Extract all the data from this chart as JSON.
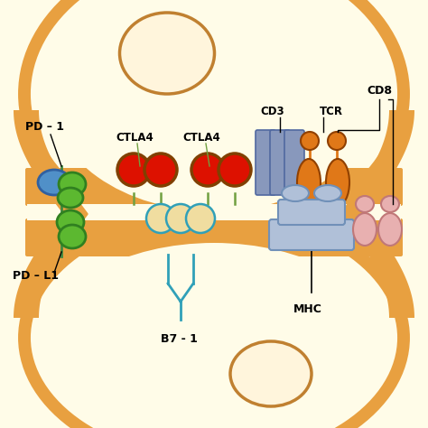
{
  "bg_color": "#FFFCE8",
  "cell_fill": "#FFFCE8",
  "membrane_color": "#E8A040",
  "nucleus_fill": "#FFF5DC",
  "nucleus_edge": "#C08030",
  "green_color": "#5CB830",
  "blue_oval": "#5090C8",
  "red_color": "#DD1100",
  "red_edge": "#804000",
  "orange_color": "#E07818",
  "teal_color": "#30A0B8",
  "beige_color": "#F0DDA0",
  "gray_blue": "#8898BC",
  "gray_blue_edge": "#5068A0",
  "light_gray": "#B0C0D8",
  "light_gray_edge": "#7090B8",
  "pink_color": "#E8B0B0",
  "pink_edge": "#C07878",
  "label_pd1": "PD – 1",
  "label_pdl1": "PD – L1",
  "label_ctla4": "CTLA4",
  "label_b71": "B7 - 1",
  "label_cd3": "CD3",
  "label_tcr": "TCR",
  "label_cd8": "CD8",
  "label_mhc": "MHC"
}
